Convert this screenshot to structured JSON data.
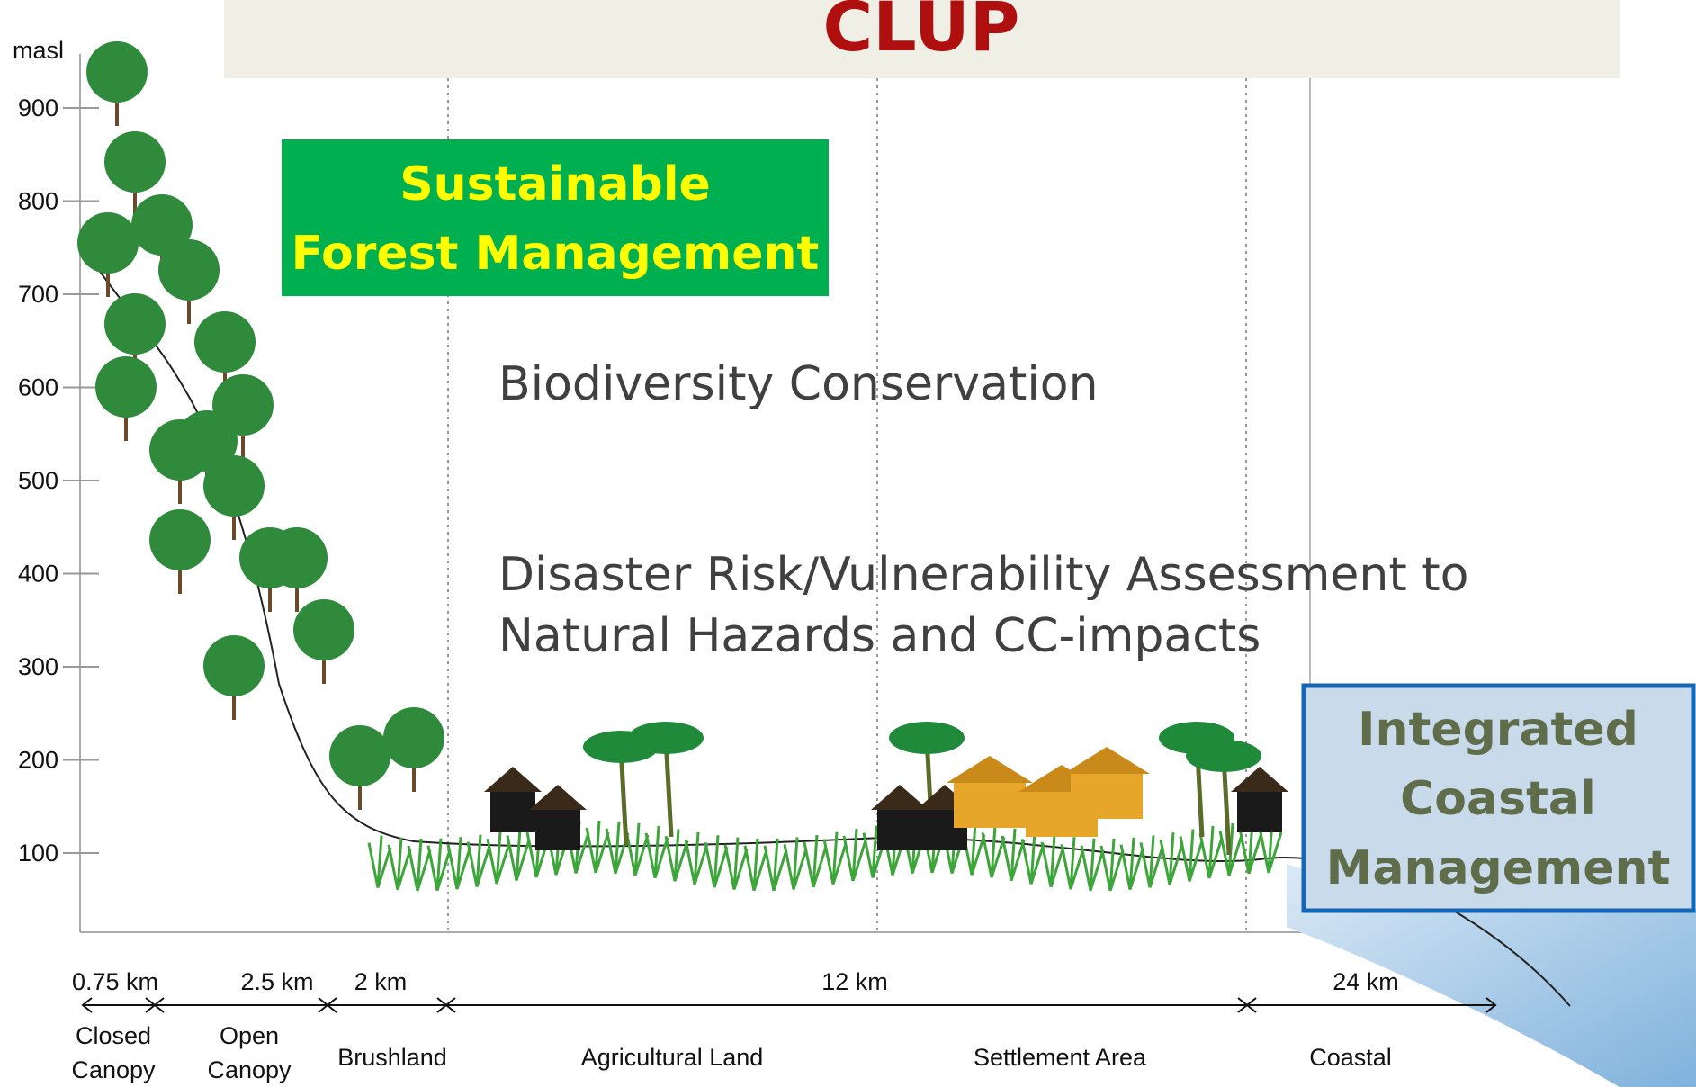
{
  "header": {
    "title": "CLUP"
  },
  "axis": {
    "unit": "masl",
    "ticks": [
      "900",
      "800",
      "700",
      "600",
      "500",
      "400",
      "300",
      "200",
      "100"
    ]
  },
  "boxes": {
    "forest": [
      "Sustainable",
      "Forest Management"
    ],
    "coastal": [
      "Integrated",
      "Coastal",
      "Management"
    ]
  },
  "topics": {
    "biodiversity": "Biodiversity Conservation",
    "disaster": [
      "Disaster Risk/Vulnerability Assessment to",
      "Natural Hazards and CC-impacts"
    ]
  },
  "distances": [
    "0.75 km",
    "2.5 km",
    "2 km",
    "12 km",
    "24 km"
  ],
  "zones": [
    [
      "Closed",
      "Canopy"
    ],
    [
      "Open",
      "Canopy"
    ],
    [
      "Brushland"
    ],
    [
      "Agricultural Land"
    ],
    [
      "Settlement Area"
    ],
    [
      "Coastal"
    ]
  ]
}
